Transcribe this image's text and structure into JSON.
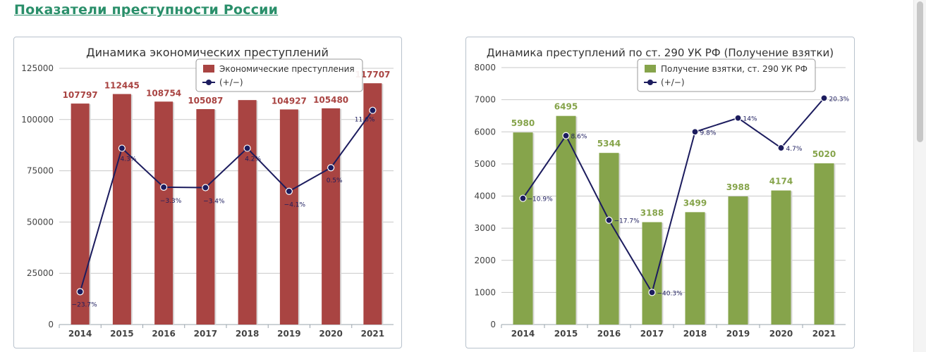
{
  "page": {
    "title": "Показатели преступности России"
  },
  "chart_data": [
    {
      "type": "bar",
      "title": "Динамика экономических преступлений",
      "categories": [
        "2014",
        "2015",
        "2016",
        "2017",
        "2018",
        "2019",
        "2020",
        "2021"
      ],
      "ylim": [
        0,
        125000
      ],
      "yticks": [
        0,
        25000,
        50000,
        75000,
        100000,
        125000
      ],
      "ytick_labels": [
        "0",
        "25000",
        "50000",
        "75000",
        "100000",
        "125000"
      ],
      "legend_position": "top-right",
      "bar_color": "#a94442",
      "label_color": "#a94442",
      "line_color": "#1c1c5e",
      "series": [
        {
          "name": "Экономические преступления",
          "values": [
            107797,
            112445,
            108754,
            105087,
            109500,
            104927,
            105480,
            117707
          ],
          "data_labels": [
            "107797",
            "112445",
            "108754",
            "105087",
            "",
            "104927",
            "105480",
            "117707"
          ]
        },
        {
          "name": "(+/−)",
          "line_y": [
            16000,
            86000,
            67000,
            66800,
            86000,
            65000,
            76500,
            104500
          ],
          "data_labels": [
            "−23.7%",
            "4.3%",
            "−3.3%",
            "−3.4%",
            "4.2%",
            "−4.1%",
            "0.5%",
            "11.6%"
          ]
        }
      ]
    },
    {
      "type": "bar",
      "title": "Динамика преступлений по ст. 290 УК РФ (Получение взятки)",
      "categories": [
        "2014",
        "2015",
        "2016",
        "2017",
        "2018",
        "2019",
        "2020",
        "2021"
      ],
      "ylim": [
        0,
        8000
      ],
      "yticks": [
        0,
        1000,
        2000,
        3000,
        4000,
        5000,
        6000,
        7000,
        8000
      ],
      "ytick_labels": [
        "0",
        "1000",
        "2000",
        "3000",
        "4000",
        "5000",
        "6000",
        "7000",
        "8000"
      ],
      "legend_position": "top-right",
      "bar_color": "#86a44b",
      "label_color": "#86a44b",
      "line_color": "#1c1c5e",
      "series": [
        {
          "name": "Получение взятки, ст. 290 УК РФ",
          "values": [
            5980,
            6495,
            5344,
            3188,
            3499,
            3988,
            4174,
            5020
          ],
          "data_labels": [
            "5980",
            "6495",
            "5344",
            "3188",
            "3499",
            "3988",
            "4174",
            "5020"
          ]
        },
        {
          "name": "(+/−)",
          "line_y": [
            3930,
            5880,
            3250,
            1000,
            6000,
            6430,
            5500,
            7050
          ],
          "data_labels": [
            "−10.9%",
            "8.6%",
            "−17.7%",
            "−40.3%",
            "9.8%",
            "14%",
            "4.7%",
            "20.3%"
          ]
        }
      ]
    }
  ]
}
